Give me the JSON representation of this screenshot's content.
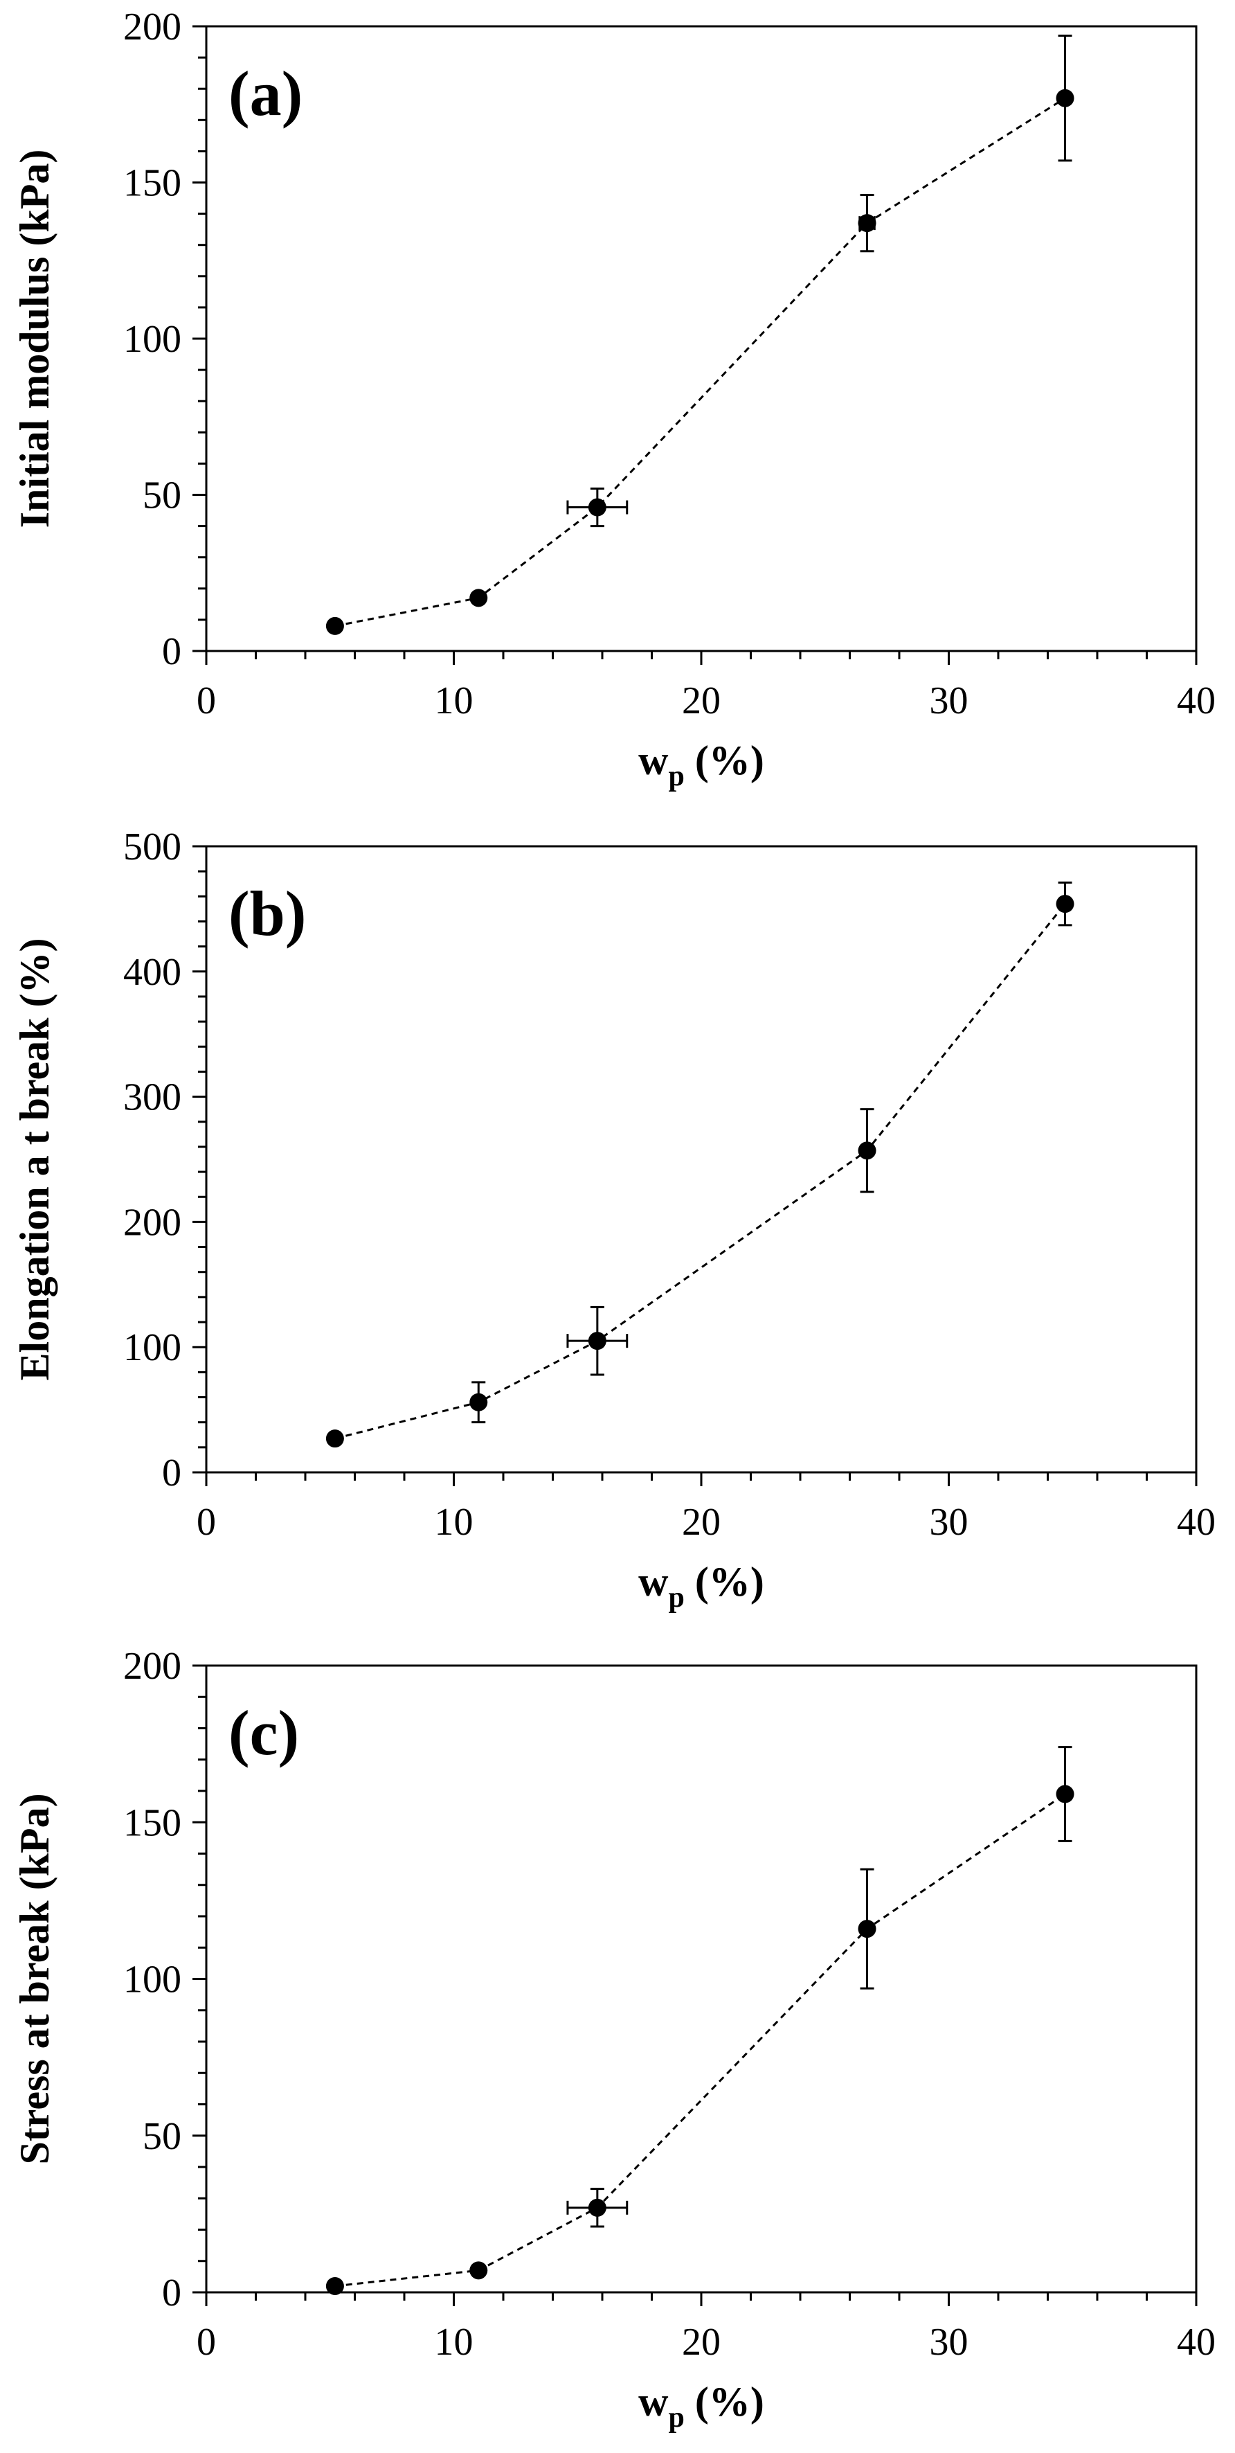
{
  "chart_data": [
    {
      "type": "scatter",
      "panel_label": "(a)",
      "xlabel_main": "w",
      "xlabel_sub": "p",
      "xlabel_tail": " (%)",
      "ylabel": "Initial modulus (kPa)",
      "xlim": [
        0,
        40
      ],
      "ylim": [
        0,
        200
      ],
      "x_ticks": [
        0,
        10,
        20,
        30,
        40
      ],
      "y_ticks": [
        0,
        50,
        100,
        150,
        200
      ],
      "x_tick_labels": [
        "0",
        "10",
        "20",
        "30",
        "40"
      ],
      "y_tick_labels": [
        "0",
        "50",
        "100",
        "150",
        "200"
      ],
      "line_style": "dashed",
      "marker": "circle",
      "color": "#000000",
      "points": [
        {
          "x": 5.2,
          "y": 8,
          "xerr": 0,
          "yerr": 1
        },
        {
          "x": 11.0,
          "y": 17,
          "xerr": 0,
          "yerr": 1.5
        },
        {
          "x": 15.8,
          "y": 46,
          "xerr": 1.2,
          "yerr": 6
        },
        {
          "x": 26.7,
          "y": 137,
          "xerr": 0.3,
          "yerr": 9
        },
        {
          "x": 34.7,
          "y": 177,
          "xerr": 0,
          "yerr": 20
        }
      ]
    },
    {
      "type": "scatter",
      "panel_label": "(b)",
      "xlabel_main": "w",
      "xlabel_sub": "p",
      "xlabel_tail": " (%)",
      "ylabel": "Elongation a t break (%)",
      "xlim": [
        0,
        40
      ],
      "ylim": [
        0,
        500
      ],
      "x_ticks": [
        0,
        10,
        20,
        30,
        40
      ],
      "y_ticks": [
        0,
        100,
        200,
        300,
        400,
        500
      ],
      "x_tick_labels": [
        "0",
        "10",
        "20",
        "30",
        "40"
      ],
      "y_tick_labels": [
        "0",
        "100",
        "200",
        "300",
        "400",
        "500"
      ],
      "line_style": "dashed",
      "marker": "circle",
      "color": "#000000",
      "points": [
        {
          "x": 5.2,
          "y": 27,
          "xerr": 0,
          "yerr": 3
        },
        {
          "x": 11.0,
          "y": 56,
          "xerr": 0,
          "yerr": 16
        },
        {
          "x": 15.8,
          "y": 105,
          "xerr": 1.2,
          "yerr": 27
        },
        {
          "x": 26.7,
          "y": 257,
          "xerr": 0,
          "yerr": 33
        },
        {
          "x": 34.7,
          "y": 454,
          "xerr": 0,
          "yerr": 17
        }
      ]
    },
    {
      "type": "scatter",
      "panel_label": "(c)",
      "xlabel_main": "w",
      "xlabel_sub": "p",
      "xlabel_tail": " (%)",
      "ylabel": "Stress at break (kPa)",
      "xlim": [
        0,
        40
      ],
      "ylim": [
        0,
        200
      ],
      "x_ticks": [
        0,
        10,
        20,
        30,
        40
      ],
      "y_ticks": [
        0,
        50,
        100,
        150,
        200
      ],
      "x_tick_labels": [
        "0",
        "10",
        "20",
        "30",
        "40"
      ],
      "y_tick_labels": [
        "0",
        "50",
        "100",
        "150",
        "200"
      ],
      "line_style": "dashed",
      "marker": "circle",
      "color": "#000000",
      "points": [
        {
          "x": 5.2,
          "y": 2,
          "xerr": 0,
          "yerr": 0.5
        },
        {
          "x": 11.0,
          "y": 7,
          "xerr": 0,
          "yerr": 1
        },
        {
          "x": 15.8,
          "y": 27,
          "xerr": 1.2,
          "yerr": 6
        },
        {
          "x": 26.7,
          "y": 116,
          "xerr": 0,
          "yerr": 19
        },
        {
          "x": 34.7,
          "y": 159,
          "xerr": 0,
          "yerr": 15
        }
      ]
    }
  ]
}
